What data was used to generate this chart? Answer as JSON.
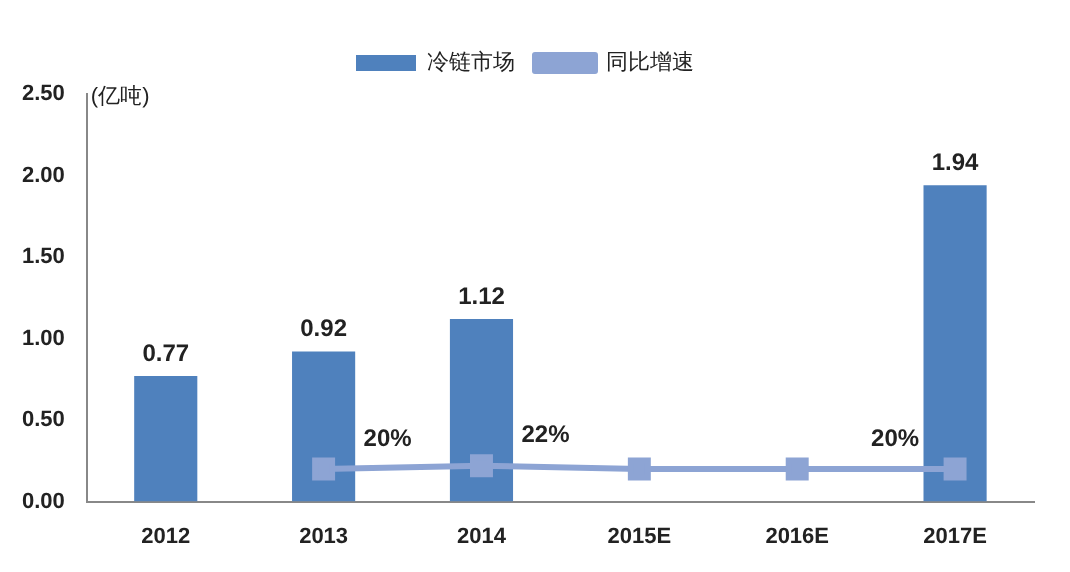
{
  "chart_data": {
    "type": "bar",
    "ylabel": "(亿吨)",
    "categories": [
      "2012",
      "2013",
      "2014",
      "2015E",
      "2016E",
      "2017E"
    ],
    "series": [
      {
        "name": "冷链市场",
        "color": "#4f81bd",
        "values": [
          0.77,
          0.92,
          1.12,
          null,
          null,
          1.94
        ],
        "value_labels": [
          "0.77",
          "0.92",
          "1.12",
          null,
          null,
          "1.94"
        ]
      },
      {
        "name": "同比增速",
        "type": "line",
        "color": "#8da4d4",
        "marker": "square",
        "values": [
          null,
          0.2,
          0.22,
          0.2,
          0.2,
          0.2
        ],
        "value_labels": [
          null,
          "20%",
          "22%",
          null,
          null,
          "20%"
        ]
      }
    ],
    "ylim": [
      0,
      2.5
    ],
    "yticks": [
      {
        "value": 0,
        "label": "0.00"
      },
      {
        "value": 0.5,
        "label": "0.50"
      },
      {
        "value": 1,
        "label": "1.00"
      },
      {
        "value": 1.5,
        "label": "1.50"
      },
      {
        "value": 2,
        "label": "2.00"
      },
      {
        "value": 2.5,
        "label": "2.50"
      }
    ],
    "grid": false,
    "legend": "top"
  }
}
